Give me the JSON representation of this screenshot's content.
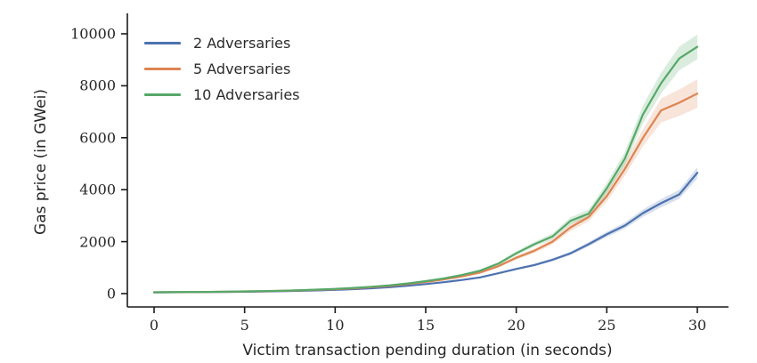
{
  "chart_data": {
    "type": "line",
    "title": "",
    "xlabel": "Victim transaction pending duration (in seconds)",
    "ylabel": "Gas price (in GWei)",
    "xlim": [
      0,
      30
    ],
    "ylim": [
      0,
      10000
    ],
    "xticks": [
      0,
      5,
      10,
      15,
      20,
      25,
      30
    ],
    "yticks": [
      0,
      2000,
      4000,
      6000,
      8000,
      10000
    ],
    "grid": false,
    "legend_position": "upper-left",
    "axis_color": "#1a1a1a",
    "band_opacity": 0.22,
    "x": [
      0,
      1,
      2,
      3,
      4,
      5,
      6,
      7,
      8,
      9,
      10,
      11,
      12,
      13,
      14,
      15,
      16,
      17,
      18,
      19,
      20,
      21,
      22,
      23,
      24,
      25,
      26,
      27,
      28,
      29,
      30
    ],
    "series": [
      {
        "name": "2 Adversaries",
        "color": "#4c72b0",
        "values": [
          48,
          51,
          55,
          60,
          66,
          73,
          82,
          93,
          107,
          124,
          145,
          172,
          205,
          248,
          300,
          365,
          440,
          525,
          625,
          780,
          950,
          1100,
          1300,
          1550,
          1900,
          2280,
          2620,
          3100,
          3480,
          3820,
          4650
        ],
        "band": [
          2,
          2,
          2,
          3,
          3,
          3,
          4,
          4,
          5,
          6,
          7,
          8,
          9,
          11,
          14,
          16,
          20,
          24,
          28,
          35,
          43,
          50,
          59,
          70,
          86,
          103,
          118,
          140,
          157,
          172,
          210
        ]
      },
      {
        "name": "5 Adversaries",
        "color": "#dd8452",
        "values": [
          50,
          54,
          59,
          65,
          72,
          81,
          92,
          106,
          123,
          144,
          170,
          203,
          245,
          298,
          365,
          450,
          545,
          660,
          810,
          1050,
          1380,
          1650,
          2000,
          2550,
          2950,
          3750,
          4800,
          6000,
          7050,
          7350,
          7700
        ],
        "band": [
          2,
          2,
          3,
          3,
          4,
          4,
          5,
          6,
          7,
          8,
          9,
          11,
          13,
          16,
          20,
          25,
          30,
          36,
          45,
          58,
          76,
          91,
          110,
          140,
          162,
          206,
          264,
          330,
          460,
          510,
          550
        ]
      },
      {
        "name": "10 Adversaries",
        "color": "#55a868",
        "values": [
          50,
          54,
          60,
          66,
          74,
          84,
          96,
          111,
          130,
          153,
          182,
          218,
          263,
          320,
          392,
          480,
          585,
          715,
          880,
          1150,
          1550,
          1900,
          2200,
          2800,
          3080,
          4050,
          5200,
          6900,
          8100,
          9050,
          9500
        ],
        "band": [
          2,
          2,
          3,
          3,
          4,
          4,
          5,
          6,
          7,
          8,
          9,
          11,
          13,
          16,
          20,
          24,
          29,
          36,
          44,
          58,
          78,
          95,
          110,
          140,
          154,
          203,
          260,
          345,
          405,
          453,
          475
        ]
      }
    ]
  },
  "layout_labels": {
    "legend_items": [
      "2 Adversaries",
      "5 Adversaries",
      "10 Adversaries"
    ]
  }
}
